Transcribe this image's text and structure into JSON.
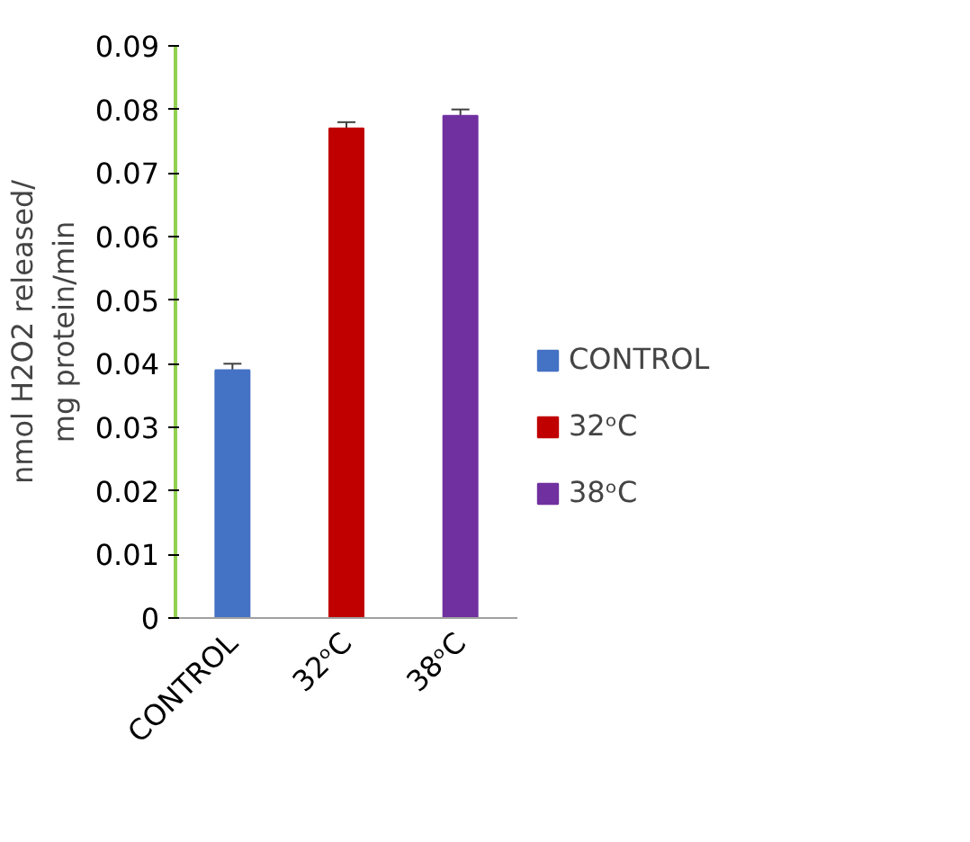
{
  "chart_data": {
    "type": "bar",
    "ylabel": "nmol H2O2 released/\nmg protein/min",
    "categories": [
      "CONTROL",
      "32ᵒC",
      "38ᵒC"
    ],
    "series": [
      {
        "name": "CONTROL",
        "color": "#4472c4",
        "values": [
          0.039,
          null,
          null
        ],
        "errors": [
          0.001,
          null,
          null
        ]
      },
      {
        "name": "32ᵒC",
        "color": "#c00000",
        "values": [
          null,
          0.077,
          null
        ],
        "errors": [
          null,
          0.001,
          null
        ]
      },
      {
        "name": "38ᵒC",
        "color": "#7030a0",
        "values": [
          null,
          null,
          0.079
        ],
        "errors": [
          null,
          null,
          0.001
        ]
      }
    ],
    "ylim": [
      0,
      0.09
    ],
    "yticks": [
      0,
      0.01,
      0.02,
      0.03,
      0.04,
      0.05,
      0.06,
      0.07,
      0.08,
      0.09
    ],
    "grid": false,
    "legend": "right"
  }
}
